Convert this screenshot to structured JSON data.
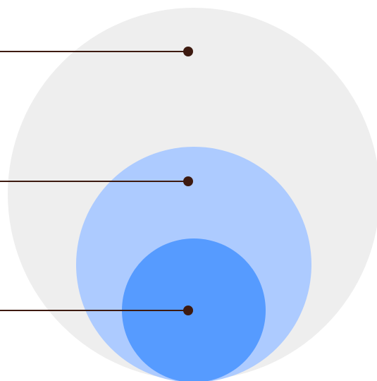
{
  "diagram": {
    "type": "nested-circles",
    "circles": [
      {
        "id": "outer",
        "fill": "#eeeeee"
      },
      {
        "id": "middle",
        "fill": "#adcbff"
      },
      {
        "id": "inner",
        "fill": "#569bff"
      }
    ],
    "callouts": [
      {
        "target": "outer",
        "line_color": "#3d1a10",
        "dot_color": "#3d1a10"
      },
      {
        "target": "middle",
        "line_color": "#3d1a10",
        "dot_color": "#3d1a10"
      },
      {
        "target": "inner",
        "line_color": "#3d1a10",
        "dot_color": "#3d1a10"
      }
    ]
  }
}
